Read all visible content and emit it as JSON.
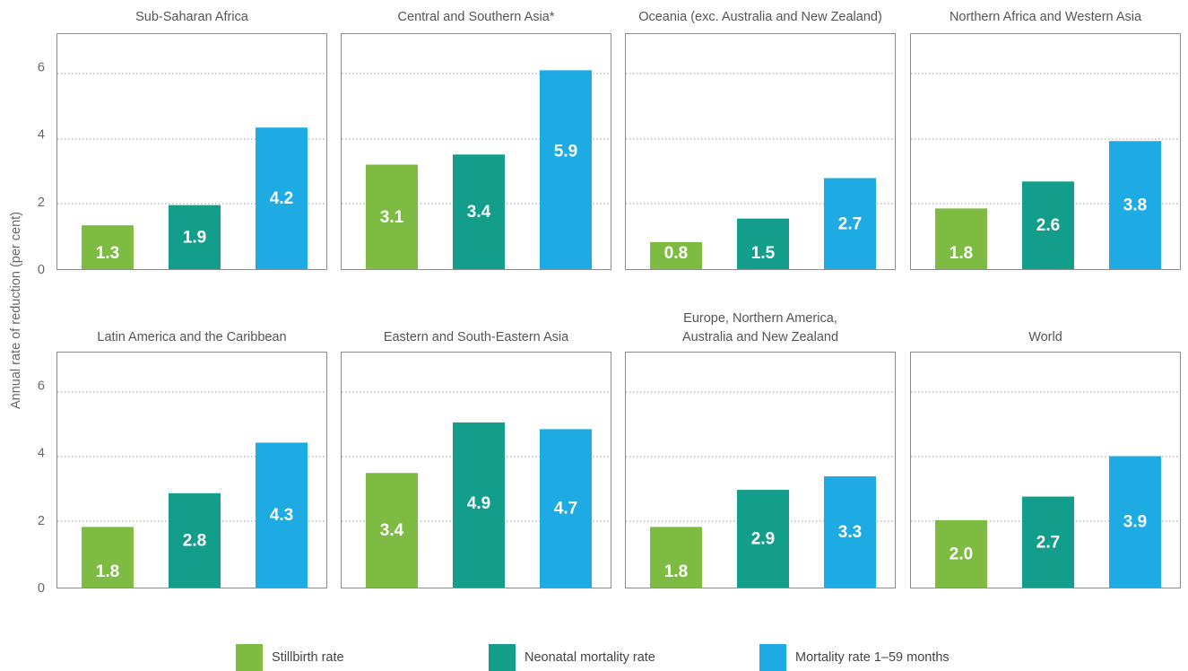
{
  "chart_data": {
    "type": "bar",
    "ylabel": "Annual rate of reduction (per cent)",
    "ylim": [
      0,
      7
    ],
    "yticks": [
      "0",
      "2",
      "4",
      "6"
    ],
    "grid": "dotted horizontal",
    "legend_position": "bottom",
    "series": [
      {
        "name": "Stillbirth rate",
        "color": "#7dbb42"
      },
      {
        "name": "Neonatal mortality rate",
        "color": "#139e8b"
      },
      {
        "name": "Mortality rate 1–59 months",
        "color": "#1eaae2"
      }
    ],
    "panels": [
      {
        "title": "Sub-Saharan Africa",
        "values": [
          1.3,
          1.9,
          4.2
        ],
        "labels": [
          "1.3",
          "1.9",
          "4.2"
        ]
      },
      {
        "title": "Central and Southern Asia*",
        "values": [
          3.1,
          3.4,
          5.9
        ],
        "labels": [
          "3.1",
          "3.4",
          "5.9"
        ]
      },
      {
        "title": "Oceania (exc. Australia and New Zealand)",
        "values": [
          0.8,
          1.5,
          2.7
        ],
        "labels": [
          "0.8",
          "1.5",
          "2.7"
        ]
      },
      {
        "title": "Northern Africa and Western Asia",
        "values": [
          1.8,
          2.6,
          3.8
        ],
        "labels": [
          "1.8",
          "2.6",
          "3.8"
        ]
      },
      {
        "title": "Latin America and the Caribbean",
        "values": [
          1.8,
          2.8,
          4.3
        ],
        "labels": [
          "1.8",
          "2.8",
          "4.3"
        ]
      },
      {
        "title": "Eastern and South-Eastern Asia",
        "values": [
          3.4,
          4.9,
          4.7
        ],
        "labels": [
          "3.4",
          "4.9",
          "4.7"
        ]
      },
      {
        "title": "Europe, Northern America,\nAustralia and New Zealand",
        "values": [
          1.8,
          2.9,
          3.3
        ],
        "labels": [
          "1.8",
          "2.9",
          "3.3"
        ]
      },
      {
        "title": "World",
        "values": [
          2.0,
          2.7,
          3.9
        ],
        "labels": [
          "2.0",
          "2.7",
          "3.9"
        ]
      }
    ]
  }
}
